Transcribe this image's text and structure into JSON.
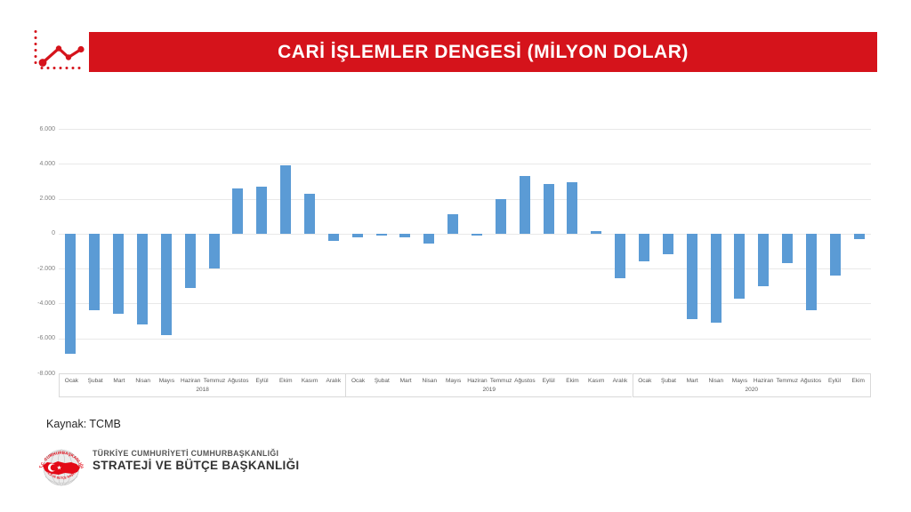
{
  "header": {
    "title": "CARİ İŞLEMLER DENGESİ (MİLYON DOLAR)"
  },
  "source_note": "Kaynak: TCMB",
  "footer": {
    "org_line1": "TÜRKİYE CUMHURİYETİ CUMHURBAŞKANLIĞI",
    "org_line2": "STRATEJİ VE BÜTÇE BAŞKANLIĞI",
    "emblem_top_text": "T.C. CUMHURBAŞKANLIĞI",
    "emblem_bottom_text": "STRATEJİ VE BÜTÇE BAŞKANLIĞI"
  },
  "colors": {
    "banner_red": "#D5131B",
    "flag_red": "#E30A17",
    "bar_blue": "#5B9BD5",
    "gridline": "#E8E8E8",
    "axis_tick_text": "#808080",
    "category_text": "#595959",
    "axis_border": "#D9D9D9"
  },
  "chart_data": {
    "type": "bar",
    "title": "CARİ İŞLEMLER DENGESİ (MİLYON DOLAR)",
    "unit": "milyon dolar",
    "ylabel": "",
    "xlabel": "",
    "ylim": [
      -8000,
      6000
    ],
    "grid": true,
    "legend": false,
    "y_ticks": [
      {
        "value": 6000,
        "label": "6.000"
      },
      {
        "value": 4000,
        "label": "4.000"
      },
      {
        "value": 2000,
        "label": "2.000"
      },
      {
        "value": 0,
        "label": "0"
      },
      {
        "value": -2000,
        "label": "-2.000"
      },
      {
        "value": -4000,
        "label": "-4.000"
      },
      {
        "value": -6000,
        "label": "-6.000"
      },
      {
        "value": -8000,
        "label": "-8.000"
      }
    ],
    "groups": [
      {
        "year": "2018",
        "months": [
          "Ocak",
          "Şubat",
          "Mart",
          "Nisan",
          "Mayıs",
          "Haziran",
          "Temmuz",
          "Ağustos",
          "Eylül",
          "Ekim",
          "Kasım",
          "Aralık"
        ],
        "values": [
          -6900,
          -4400,
          -4600,
          -5200,
          -5800,
          -3100,
          -2000,
          2600,
          2700,
          3900,
          2300,
          -400
        ]
      },
      {
        "year": "2019",
        "months": [
          "Ocak",
          "Şubat",
          "Mart",
          "Nisan",
          "Mayıs",
          "Haziran",
          "Temmuz",
          "Ağustos",
          "Eylül",
          "Ekim",
          "Kasım",
          "Aralık"
        ],
        "values": [
          -200,
          -100,
          -200,
          -550,
          1100,
          -100,
          2000,
          3300,
          2850,
          2950,
          150,
          -2550
        ]
      },
      {
        "year": "2020",
        "months": [
          "Ocak",
          "Şubat",
          "Mart",
          "Nisan",
          "Mayıs",
          "Haziran",
          "Temmuz",
          "Ağustos",
          "Eylül",
          "Ekim"
        ],
        "values": [
          -1600,
          -1200,
          -4900,
          -5100,
          -3700,
          -3000,
          -1700,
          -4400,
          -2400,
          -300
        ]
      }
    ]
  }
}
